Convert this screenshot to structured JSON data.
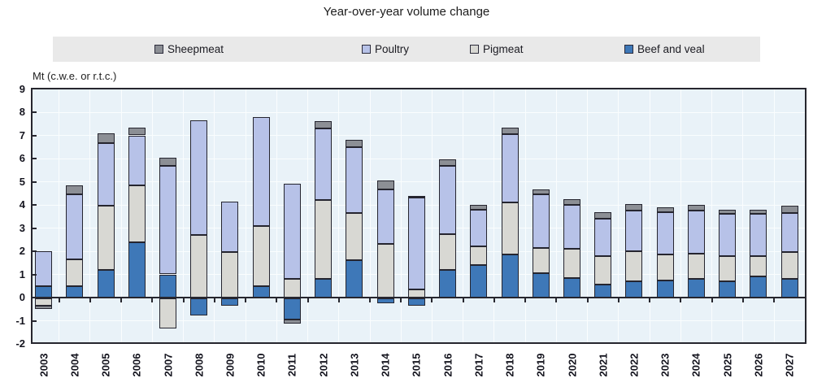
{
  "chart_data": {
    "type": "bar",
    "stacked": true,
    "title": "Year-over-year volume change",
    "ylabel": "Mt (c.w.e. or r.t.c.)",
    "xlabel": "",
    "ylim": [
      -2,
      9
    ],
    "ytick_step": 1,
    "grid": true,
    "legend_position": "top",
    "legend_order": [
      "Sheepmeat",
      "Poultry",
      "Pigmeat",
      "Beef and veal"
    ],
    "categories": [
      "2003",
      "2004",
      "2005",
      "2006",
      "2007",
      "2008",
      "2009",
      "2010",
      "2011",
      "2012",
      "2013",
      "2014",
      "2015",
      "2016",
      "2017",
      "2018",
      "2019",
      "2020",
      "2021",
      "2022",
      "2023",
      "2024",
      "2025",
      "2026",
      "2027"
    ],
    "series": [
      {
        "name": "Beef and veal",
        "color": "#3E78B8",
        "values": [
          0.5,
          0.5,
          1.2,
          2.4,
          1.0,
          -0.75,
          -0.3,
          0.5,
          -0.9,
          0.8,
          1.6,
          -0.2,
          -0.3,
          1.2,
          1.4,
          1.85,
          1.05,
          0.85,
          0.55,
          0.7,
          0.75,
          0.8,
          0.7,
          0.9,
          0.8
        ]
      },
      {
        "name": "Pigmeat",
        "color": "#D8D8D3",
        "values": [
          -0.3,
          1.15,
          2.75,
          2.45,
          -1.3,
          2.7,
          1.95,
          2.6,
          0.8,
          3.4,
          2.05,
          2.3,
          0.35,
          1.55,
          0.8,
          2.25,
          1.1,
          1.25,
          1.25,
          1.3,
          1.1,
          1.1,
          1.1,
          0.9,
          1.15
        ]
      },
      {
        "name": "Poultry",
        "color": "#B7C2E8",
        "values": [
          1.5,
          2.8,
          2.7,
          2.15,
          4.7,
          4.95,
          2.2,
          4.7,
          4.1,
          3.1,
          2.85,
          2.35,
          3.95,
          2.95,
          1.6,
          2.95,
          2.3,
          1.9,
          1.6,
          1.75,
          1.85,
          1.85,
          1.8,
          1.8,
          1.7
        ]
      },
      {
        "name": "Sheepmeat",
        "color": "#8C8F95",
        "values": [
          -0.15,
          0.4,
          0.45,
          0.35,
          0.35,
          0,
          0,
          0,
          -0.2,
          0.3,
          0.3,
          0.4,
          0.1,
          0.25,
          0.2,
          0.3,
          0.2,
          0.25,
          0.3,
          0.3,
          0.2,
          0.25,
          0.2,
          0.2,
          0.3
        ]
      }
    ],
    "colors": {
      "plot_background": "#E9F2F8",
      "gridline": "#FAFDFE",
      "bar_border": "#25252F",
      "legend_background": "#E9E9E9",
      "axis": "#26262E",
      "text": "#1B1B22"
    }
  }
}
